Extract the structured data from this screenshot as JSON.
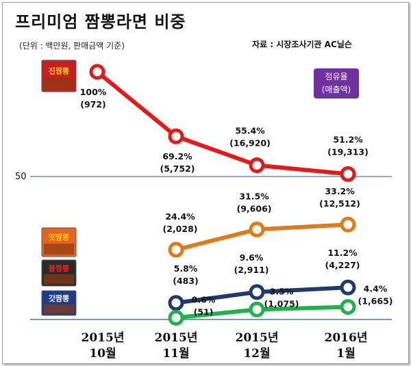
{
  "page": {
    "title": "프리미엄 짬뽕라면 비중",
    "unit_note": "(단위 :  백만원, 판매금액 기준)",
    "source": "자료 : 시장조사기관 AC닐슨",
    "badge_line1": "점유율",
    "badge_line2": "(매출액)"
  },
  "chart_data": {
    "type": "line",
    "title": "프리미엄 짬뽕라면 비중",
    "ylabel": "점유율 (매출액)",
    "categories": [
      [
        "2015년",
        "10월"
      ],
      [
        "2015년",
        "11월"
      ],
      [
        "2015년",
        "12월"
      ],
      [
        "2016년",
        "1월"
      ]
    ],
    "reference_lines": [
      {
        "value": 50,
        "label": "50"
      }
    ],
    "series": [
      {
        "name": "진짬뽕",
        "product_label": "진짬뽕",
        "color": "#e41a1a",
        "values": [
          100,
          69.2,
          55.4,
          51.2
        ],
        "sales": [
          972,
          5752,
          16920,
          19313
        ],
        "labels": [
          [
            "100%",
            "(972)"
          ],
          [
            "69.2%",
            "(5,752)"
          ],
          [
            "55.4%",
            "(16,920)"
          ],
          [
            "51.2%",
            "(19,313)"
          ]
        ]
      },
      {
        "name": "맛짬뽕",
        "product_label": "맛짬뽕",
        "color": "#e07b1a",
        "values": [
          null,
          24.4,
          31.5,
          33.2
        ],
        "sales": [
          null,
          2028,
          9606,
          12512
        ],
        "labels": [
          null,
          [
            "24.4%",
            "(2,028)"
          ],
          [
            "31.5%",
            "(9,606)"
          ],
          [
            "33.2%",
            "(12,512)"
          ]
        ]
      },
      {
        "name": "불짬뽕",
        "product_label": "불짬뽕",
        "color": "#1f3a6e",
        "values": [
          null,
          5.8,
          9.6,
          11.2
        ],
        "sales": [
          null,
          483,
          2911,
          4227
        ],
        "labels": [
          null,
          [
            "5.8%",
            "(483)"
          ],
          [
            "9.6%",
            "(2,911)"
          ],
          [
            "11.2%",
            "(4,227)"
          ]
        ]
      },
      {
        "name": "갓짬뽕",
        "product_label": "갓짬뽕",
        "color": "#1db34a",
        "values": [
          null,
          0.6,
          3.5,
          4.4
        ],
        "sales": [
          null,
          51,
          1075,
          1665
        ],
        "labels": [
          null,
          [
            "0.6%",
            "(51)"
          ],
          [
            "3.5%",
            "(1,075)"
          ],
          [
            "4.4%",
            "(1,665)"
          ]
        ]
      }
    ]
  }
}
